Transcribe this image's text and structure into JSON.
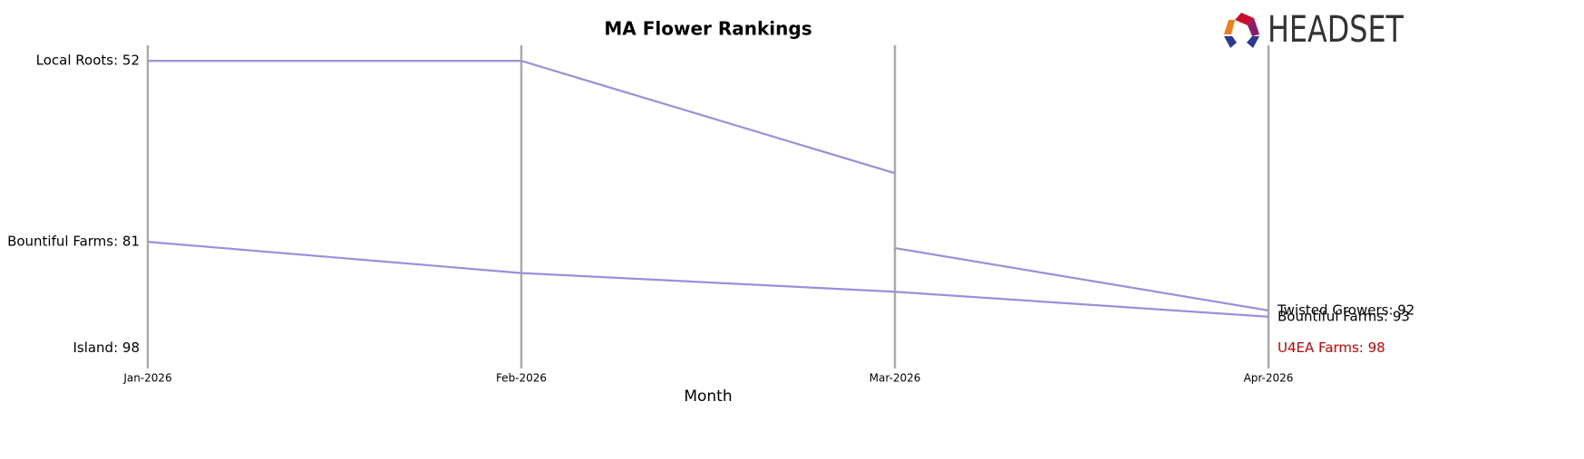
{
  "chart_data": {
    "type": "line",
    "title": "MA Flower Rankings",
    "x_label": "Month",
    "logo": "HEADSET",
    "categories": [
      "Jan-2026",
      "Feb-2026",
      "Mar-2026",
      "Apr-2026"
    ],
    "ylim": [
      101,
      49.5
    ],
    "series": [
      {
        "color": "#9a8fdb",
        "label_color": "#000000",
        "values": [
          52,
          52,
          70,
          null
        ],
        "value_labels": [
          "Local Roots: 52",
          null,
          null,
          null
        ]
      },
      {
        "color": "#9a8fdb",
        "label_color": "#000000",
        "values": [
          81,
          86,
          89,
          93
        ],
        "value_labels": [
          "Bountiful Farms: 81",
          null,
          null,
          "Bountiful Farms: 93"
        ]
      },
      {
        "color": "#9a8fdb",
        "label_color": "#000000",
        "values": [
          null,
          null,
          82,
          92
        ],
        "value_labels": [
          null,
          null,
          null,
          "Twisted Growers: 92"
        ]
      },
      {
        "color": "#9a8fdb",
        "label_color": "#000000",
        "values": [
          98,
          null,
          null,
          null
        ],
        "value_labels": [
          "Island: 98",
          null,
          null,
          null
        ]
      },
      {
        "color": "#9a8fdb",
        "label_color": "#cc0000",
        "values": [
          null,
          null,
          null,
          98
        ],
        "value_labels": [
          null,
          null,
          null,
          "U4EA Farms: 98"
        ]
      }
    ]
  }
}
